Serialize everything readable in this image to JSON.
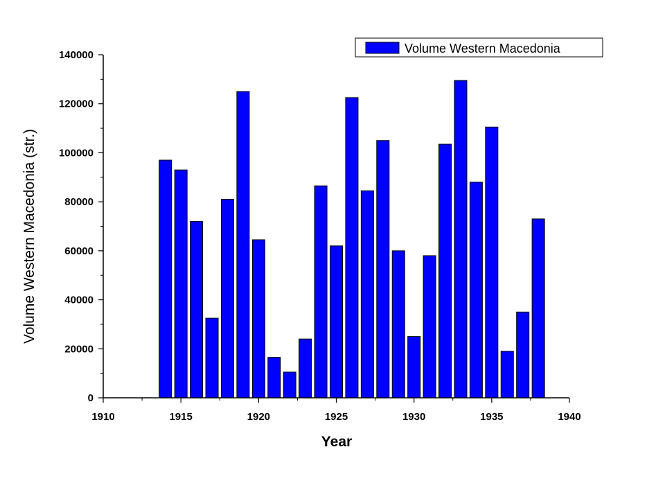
{
  "chart_data": {
    "type": "bar",
    "xlabel": "Year",
    "ylabel": "Volume Western Macedonia (str.)",
    "xlim": [
      1910,
      1940
    ],
    "ylim": [
      0,
      140000
    ],
    "x_ticks": [
      "1910",
      "1915",
      "1920",
      "1925",
      "1930",
      "1935",
      "1940"
    ],
    "y_ticks": [
      "0",
      "20000",
      "40000",
      "60000",
      "80000",
      "100000",
      "120000",
      "140000"
    ],
    "legend_position": "top-right",
    "bar_color": "#0000ff",
    "series": [
      {
        "name": "Volume Western Macedonia",
        "x": [
          1914,
          1915,
          1916,
          1917,
          1918,
          1919,
          1920,
          1921,
          1922,
          1923,
          1924,
          1925,
          1926,
          1927,
          1928,
          1929,
          1930,
          1931,
          1932,
          1933,
          1934,
          1935,
          1936,
          1937,
          1938
        ],
        "values": [
          97000,
          93000,
          72000,
          32500,
          81000,
          125000,
          64500,
          16500,
          10500,
          24000,
          86500,
          62000,
          122500,
          84500,
          105000,
          60000,
          25000,
          58000,
          103500,
          129500,
          88000,
          110500,
          19000,
          35000,
          73000
        ]
      }
    ]
  }
}
